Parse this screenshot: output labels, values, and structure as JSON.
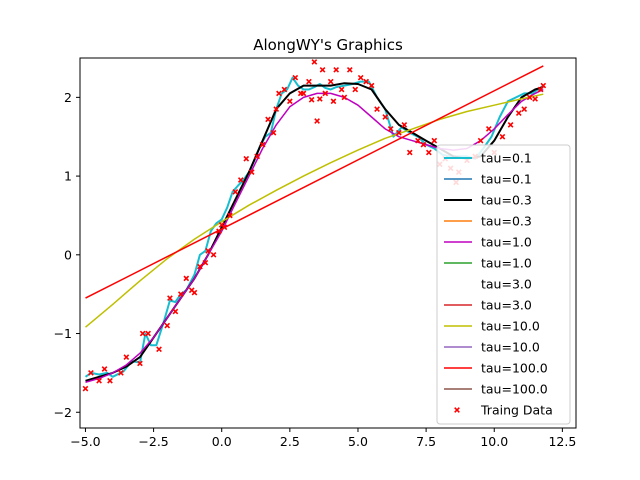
{
  "chart_data": {
    "type": "line",
    "title": "AlongWY's Graphics",
    "xlabel": "",
    "ylabel": "",
    "xlim": [
      -5.2,
      13.0
    ],
    "ylim": [
      -2.2,
      2.5
    ],
    "xticks": [
      -5.0,
      -2.5,
      0.0,
      2.5,
      5.0,
      7.5,
      10.0,
      12.5
    ],
    "xtick_labels": [
      "−5.0",
      "−2.5",
      "0.0",
      "2.5",
      "5.0",
      "7.5",
      "10.0",
      "12.5"
    ],
    "yticks": [
      -2,
      -1,
      0,
      1,
      2
    ],
    "ytick_labels": [
      "−2",
      "−1",
      "0",
      "1",
      "2"
    ],
    "grid": false,
    "legend_position": "bottom-right",
    "series": [
      {
        "name": "tau=0.1",
        "color": "#17becf",
        "kind": "line",
        "width": 2,
        "x": [
          -5.0,
          -4.8,
          -4.5,
          -4.2,
          -4.0,
          -3.6,
          -3.3,
          -3.0,
          -2.8,
          -2.6,
          -2.4,
          -2.1,
          -1.9,
          -1.7,
          -1.5,
          -1.3,
          -1.0,
          -0.8,
          -0.6,
          -0.4,
          -0.2,
          0.0,
          0.2,
          0.4,
          0.6,
          0.8,
          1.0,
          1.2,
          1.4,
          1.6,
          1.8,
          2.0,
          2.2,
          2.4,
          2.6,
          2.8,
          3.0,
          3.2,
          3.4,
          3.6,
          3.8,
          4.0,
          4.2,
          4.5,
          4.8,
          5.1,
          5.4,
          5.7,
          6.0,
          6.3,
          6.6,
          6.9,
          7.2,
          7.5,
          7.8,
          8.1,
          8.4,
          8.7,
          9.0,
          9.3,
          9.6,
          9.9,
          10.2,
          10.5,
          10.8,
          11.1,
          11.4,
          11.6,
          11.8
        ],
        "y": [
          -1.55,
          -1.5,
          -1.52,
          -1.5,
          -1.55,
          -1.48,
          -1.35,
          -1.37,
          -1.0,
          -1.15,
          -1.15,
          -0.82,
          -0.58,
          -0.6,
          -0.5,
          -0.45,
          -0.25,
          0.0,
          0.05,
          0.3,
          0.4,
          0.45,
          0.6,
          0.8,
          0.88,
          0.95,
          1.05,
          1.2,
          1.38,
          1.5,
          1.55,
          1.85,
          2.05,
          2.1,
          2.25,
          2.15,
          2.1,
          2.1,
          2.13,
          2.17,
          2.12,
          2.1,
          2.13,
          2.15,
          2.17,
          2.2,
          2.2,
          2.0,
          1.85,
          1.5,
          1.62,
          1.55,
          1.5,
          1.4,
          1.35,
          1.27,
          1.25,
          1.25,
          1.25,
          1.22,
          1.35,
          1.5,
          1.75,
          1.95,
          2.0,
          2.05,
          2.05,
          2.1,
          2.15
        ]
      },
      {
        "name": "tau=0.1",
        "color": "#1f77b4",
        "kind": "line",
        "width": 1.5,
        "x": [],
        "y": []
      },
      {
        "name": "tau=0.3",
        "color": "#000000",
        "kind": "line",
        "width": 2,
        "x": [
          -5.0,
          -4.5,
          -4.0,
          -3.5,
          -3.0,
          -2.5,
          -2.0,
          -1.5,
          -1.0,
          -0.5,
          0.0,
          0.5,
          1.0,
          1.5,
          2.0,
          2.5,
          3.0,
          3.5,
          4.0,
          4.5,
          5.0,
          5.5,
          6.0,
          6.5,
          7.0,
          7.5,
          8.0,
          8.5,
          9.0,
          9.5,
          10.0,
          10.5,
          11.0,
          11.5,
          11.8
        ],
        "y": [
          -1.6,
          -1.55,
          -1.5,
          -1.42,
          -1.3,
          -1.05,
          -0.8,
          -0.55,
          -0.3,
          0.0,
          0.35,
          0.7,
          1.05,
          1.45,
          1.85,
          2.05,
          2.15,
          2.15,
          2.15,
          2.18,
          2.17,
          2.1,
          1.85,
          1.65,
          1.55,
          1.45,
          1.35,
          1.25,
          1.22,
          1.25,
          1.45,
          1.75,
          2.0,
          2.1,
          2.13
        ]
      },
      {
        "name": "tau=0.3",
        "color": "#ff7f0e",
        "kind": "line",
        "width": 1.5,
        "x": [],
        "y": []
      },
      {
        "name": "tau=1.0",
        "color": "#bf00bf",
        "kind": "line",
        "width": 1.5,
        "x": [
          -5.0,
          -4.5,
          -4.0,
          -3.5,
          -3.0,
          -2.5,
          -2.0,
          -1.5,
          -1.0,
          -0.5,
          0.0,
          0.5,
          1.0,
          1.5,
          2.0,
          2.5,
          3.0,
          3.5,
          4.0,
          4.5,
          5.0,
          5.5,
          6.0,
          6.5,
          7.0,
          7.5,
          8.0,
          8.5,
          9.0,
          9.5,
          10.0,
          10.5,
          11.0,
          11.5,
          11.8
        ],
        "y": [
          -1.62,
          -1.57,
          -1.5,
          -1.4,
          -1.25,
          -1.05,
          -0.8,
          -0.55,
          -0.3,
          0.0,
          0.3,
          0.65,
          1.0,
          1.35,
          1.65,
          1.88,
          2.0,
          2.05,
          2.05,
          2.0,
          1.9,
          1.75,
          1.6,
          1.5,
          1.45,
          1.4,
          1.35,
          1.33,
          1.35,
          1.45,
          1.6,
          1.78,
          1.95,
          2.05,
          2.1
        ]
      },
      {
        "name": "tau=1.0",
        "color": "#2ca02c",
        "kind": "line",
        "width": 1.5,
        "x": [],
        "y": []
      },
      {
        "name": "tau=3.0",
        "color": "#ffffff",
        "kind": "line",
        "width": 1.5,
        "x": [],
        "y": []
      },
      {
        "name": "tau=3.0",
        "color": "#d62728",
        "kind": "line",
        "width": 1.5,
        "x": [],
        "y": []
      },
      {
        "name": "tau=10.0",
        "color": "#bfbf00",
        "kind": "line",
        "width": 1.5,
        "x": [
          -5.0,
          -4.0,
          -3.0,
          -2.0,
          -1.0,
          0.0,
          1.0,
          2.0,
          3.0,
          4.0,
          5.0,
          6.0,
          7.0,
          8.0,
          9.0,
          10.0,
          11.0,
          11.8
        ],
        "y": [
          -0.92,
          -0.63,
          -0.33,
          -0.05,
          0.2,
          0.42,
          0.63,
          0.82,
          1.0,
          1.17,
          1.33,
          1.48,
          1.6,
          1.72,
          1.82,
          1.9,
          1.98,
          2.04
        ]
      },
      {
        "name": "tau=10.0",
        "color": "#9467bd",
        "kind": "line",
        "width": 1.5,
        "x": [],
        "y": []
      },
      {
        "name": "tau=100.0",
        "color": "#ff0000",
        "kind": "line",
        "width": 1.5,
        "x": [
          -5.0,
          11.8
        ],
        "y": [
          -0.55,
          2.4
        ]
      },
      {
        "name": "tau=100.0",
        "color": "#8c564b",
        "kind": "line",
        "width": 1.5,
        "x": [],
        "y": []
      },
      {
        "name": "Traing Data",
        "color": "#ff0000",
        "kind": "scatter",
        "x": [
          -5.0,
          -4.8,
          -4.5,
          -4.3,
          -4.1,
          -3.7,
          -3.5,
          -3.0,
          -2.9,
          -2.7,
          -2.3,
          -2.0,
          -1.9,
          -1.7,
          -1.5,
          -1.3,
          -1.1,
          -1.0,
          -0.8,
          -0.6,
          -0.5,
          -0.3,
          -0.1,
          0.0,
          0.1,
          0.3,
          0.5,
          0.7,
          0.9,
          1.1,
          1.3,
          1.5,
          1.7,
          1.9,
          2.0,
          2.1,
          2.3,
          2.5,
          2.7,
          2.9,
          3.0,
          3.2,
          3.3,
          3.4,
          3.5,
          3.6,
          3.7,
          3.8,
          4.0,
          4.1,
          4.2,
          4.4,
          4.5,
          4.7,
          4.9,
          5.1,
          5.3,
          5.5,
          5.7,
          6.0,
          6.2,
          6.5,
          6.7,
          6.9,
          7.2,
          7.4,
          7.6,
          7.8,
          8.0,
          8.2,
          8.4,
          8.6,
          8.7,
          9.0,
          9.3,
          9.5,
          9.8,
          10.0,
          10.3,
          10.6,
          10.9,
          11.1,
          11.3,
          11.5,
          11.7,
          11.8
        ],
        "y": [
          -1.7,
          -1.5,
          -1.6,
          -1.45,
          -1.6,
          -1.5,
          -1.3,
          -1.38,
          -1.0,
          -1.0,
          -1.2,
          -0.9,
          -0.55,
          -0.72,
          -0.5,
          -0.3,
          -0.45,
          -0.48,
          -0.15,
          -0.1,
          0.05,
          0.0,
          0.3,
          0.38,
          0.35,
          0.5,
          0.8,
          0.95,
          1.22,
          1.05,
          1.25,
          1.4,
          1.72,
          1.55,
          1.85,
          2.05,
          2.1,
          1.95,
          2.25,
          2.05,
          2.05,
          2.2,
          1.97,
          2.45,
          1.7,
          1.98,
          2.35,
          2.05,
          2.2,
          1.95,
          2.35,
          2.1,
          2.0,
          2.35,
          2.1,
          2.25,
          2.2,
          2.15,
          1.85,
          1.75,
          1.6,
          1.55,
          1.65,
          1.3,
          1.45,
          1.4,
          1.3,
          1.45,
          1.15,
          1.22,
          1.1,
          0.92,
          1.05,
          1.2,
          1.25,
          1.45,
          1.6,
          1.3,
          1.5,
          1.65,
          1.8,
          1.85,
          2.0,
          1.98,
          2.1,
          2.15
        ]
      }
    ]
  }
}
